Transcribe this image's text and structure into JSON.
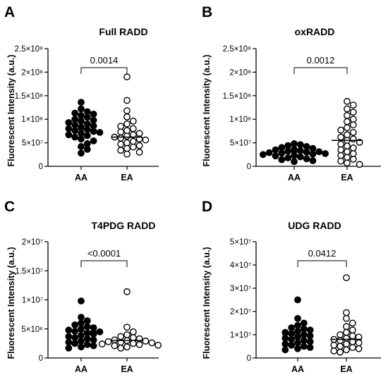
{
  "chart_data": [
    {
      "type": "scatter",
      "panel_letter": "A",
      "title": "Full RADD",
      "ylabel": "Fluorescent Intensity (a.u.)",
      "categories": [
        "AA",
        "EA"
      ],
      "ylim": [
        0,
        250000000
      ],
      "yticks": [
        0,
        50000000,
        100000000,
        150000000,
        200000000,
        250000000
      ],
      "ytick_labels": [
        "0",
        "5×10⁷",
        "1×10⁸",
        "1.5×10⁸",
        "2×10⁸",
        "2.5×10⁸"
      ],
      "significance": "0.0014",
      "medians": [
        78000000,
        62000000
      ],
      "series": [
        {
          "marker": "filled",
          "values": [
            136000000,
            122000000,
            116000000,
            113000000,
            111000000,
            108000000,
            104000000,
            100000000,
            98000000,
            96000000,
            93000000,
            90000000,
            88000000,
            86000000,
            83000000,
            80000000,
            78000000,
            76000000,
            74000000,
            72000000,
            70000000,
            67000000,
            65000000,
            62000000,
            58000000,
            54000000,
            48000000,
            42000000,
            36000000,
            28000000
          ]
        },
        {
          "marker": "open",
          "values": [
            190000000,
            140000000,
            118000000,
            105000000,
            96000000,
            90000000,
            85000000,
            80000000,
            76000000,
            73000000,
            70000000,
            67000000,
            64000000,
            62000000,
            60000000,
            58000000,
            56000000,
            53000000,
            50000000,
            47000000,
            44000000,
            41000000,
            38000000,
            34000000,
            30000000,
            26000000
          ]
        }
      ]
    },
    {
      "type": "scatter",
      "panel_letter": "B",
      "title": "oxRADD",
      "ylabel": "Fluorescent Intensity (a.u.)",
      "categories": [
        "AA",
        "EA"
      ],
      "ylim": [
        0,
        250000000
      ],
      "yticks": [
        0,
        50000000,
        100000000,
        150000000,
        200000000,
        250000000
      ],
      "ytick_labels": [
        "0",
        "5×10⁷",
        "1×10⁸",
        "1.5×10⁸",
        "2×10⁸",
        "2.5×10⁸"
      ],
      "significance": "0.0012",
      "medians": [
        30000000,
        55000000
      ],
      "series": [
        {
          "marker": "filled",
          "values": [
            48000000,
            46000000,
            44000000,
            42000000,
            40000000,
            38000000,
            36000000,
            35000000,
            33000000,
            32000000,
            31000000,
            30000000,
            29000000,
            28000000,
            27000000,
            26000000,
            25000000,
            23000000,
            22000000,
            20000000,
            18000000,
            16000000,
            14000000,
            12000000,
            10000000
          ]
        },
        {
          "marker": "open",
          "values": [
            138000000,
            130000000,
            122000000,
            115000000,
            108000000,
            100000000,
            95000000,
            88000000,
            82000000,
            77000000,
            72000000,
            67000000,
            62000000,
            58000000,
            55000000,
            51000000,
            47000000,
            43000000,
            39000000,
            35000000,
            31000000,
            27000000,
            23000000,
            19000000,
            15000000,
            11000000,
            7000000,
            4000000
          ]
        }
      ]
    },
    {
      "type": "scatter",
      "panel_letter": "C",
      "title": "T4PDG RADD",
      "ylabel": "Fluorescent Intensity (a.u.)",
      "categories": [
        "AA",
        "EA"
      ],
      "ylim": [
        0,
        20000000
      ],
      "yticks": [
        0,
        5000000,
        10000000,
        15000000,
        20000000
      ],
      "ytick_labels": [
        "0",
        "5×10⁶",
        "1×10⁷",
        "1.5×10⁷",
        "2×10⁷"
      ],
      "significance": "<0.0001",
      "medians": [
        4600000,
        3000000
      ],
      "series": [
        {
          "marker": "filled",
          "values": [
            9800000,
            7000000,
            6400000,
            6000000,
            5700000,
            5400000,
            5200000,
            5000000,
            4800000,
            4600000,
            4500000,
            4300000,
            4100000,
            3900000,
            3700000,
            3500000,
            3300000,
            3100000,
            2900000,
            2700000,
            2500000,
            2300000,
            2100000,
            1900000,
            1700000
          ]
        },
        {
          "marker": "open",
          "values": [
            11400000,
            5300000,
            4500000,
            4000000,
            3700000,
            3500000,
            3300000,
            3100000,
            3000000,
            2900000,
            2800000,
            2700000,
            2600000,
            2500000,
            2400000,
            2300000,
            2200000,
            2100000,
            1900000,
            1700000
          ]
        }
      ]
    },
    {
      "type": "scatter",
      "panel_letter": "D",
      "title": "UDG RADD",
      "ylabel": "Fluorescent Intensity (a.u.)",
      "categories": [
        "AA",
        "EA"
      ],
      "ylim": [
        0,
        50000000
      ],
      "yticks": [
        0,
        10000000,
        20000000,
        30000000,
        40000000,
        50000000
      ],
      "ytick_labels": [
        "0",
        "1×10⁷",
        "2×10⁷",
        "3×10⁷",
        "4×10⁷",
        "5×10⁷"
      ],
      "significance": "0.0412",
      "medians": [
        10000000,
        8000000
      ],
      "series": [
        {
          "marker": "filled",
          "values": [
            25000000,
            17000000,
            15000000,
            14000000,
            13000000,
            12500000,
            12000000,
            11500000,
            11000000,
            10500000,
            10000000,
            9500000,
            9000000,
            8500000,
            8000000,
            7500000,
            7000000,
            6500000,
            6000000,
            5500000,
            5000000,
            4500000,
            4000000,
            3500000
          ]
        },
        {
          "marker": "open",
          "values": [
            34500000,
            19500000,
            17000000,
            15000000,
            13500000,
            12000000,
            11000000,
            10000000,
            9500000,
            9000000,
            8500000,
            8000000,
            7500000,
            7000000,
            6500000,
            6000000,
            5500000,
            5000000,
            4500000,
            4000000,
            3500000,
            3000000,
            2500000
          ]
        }
      ]
    }
  ]
}
